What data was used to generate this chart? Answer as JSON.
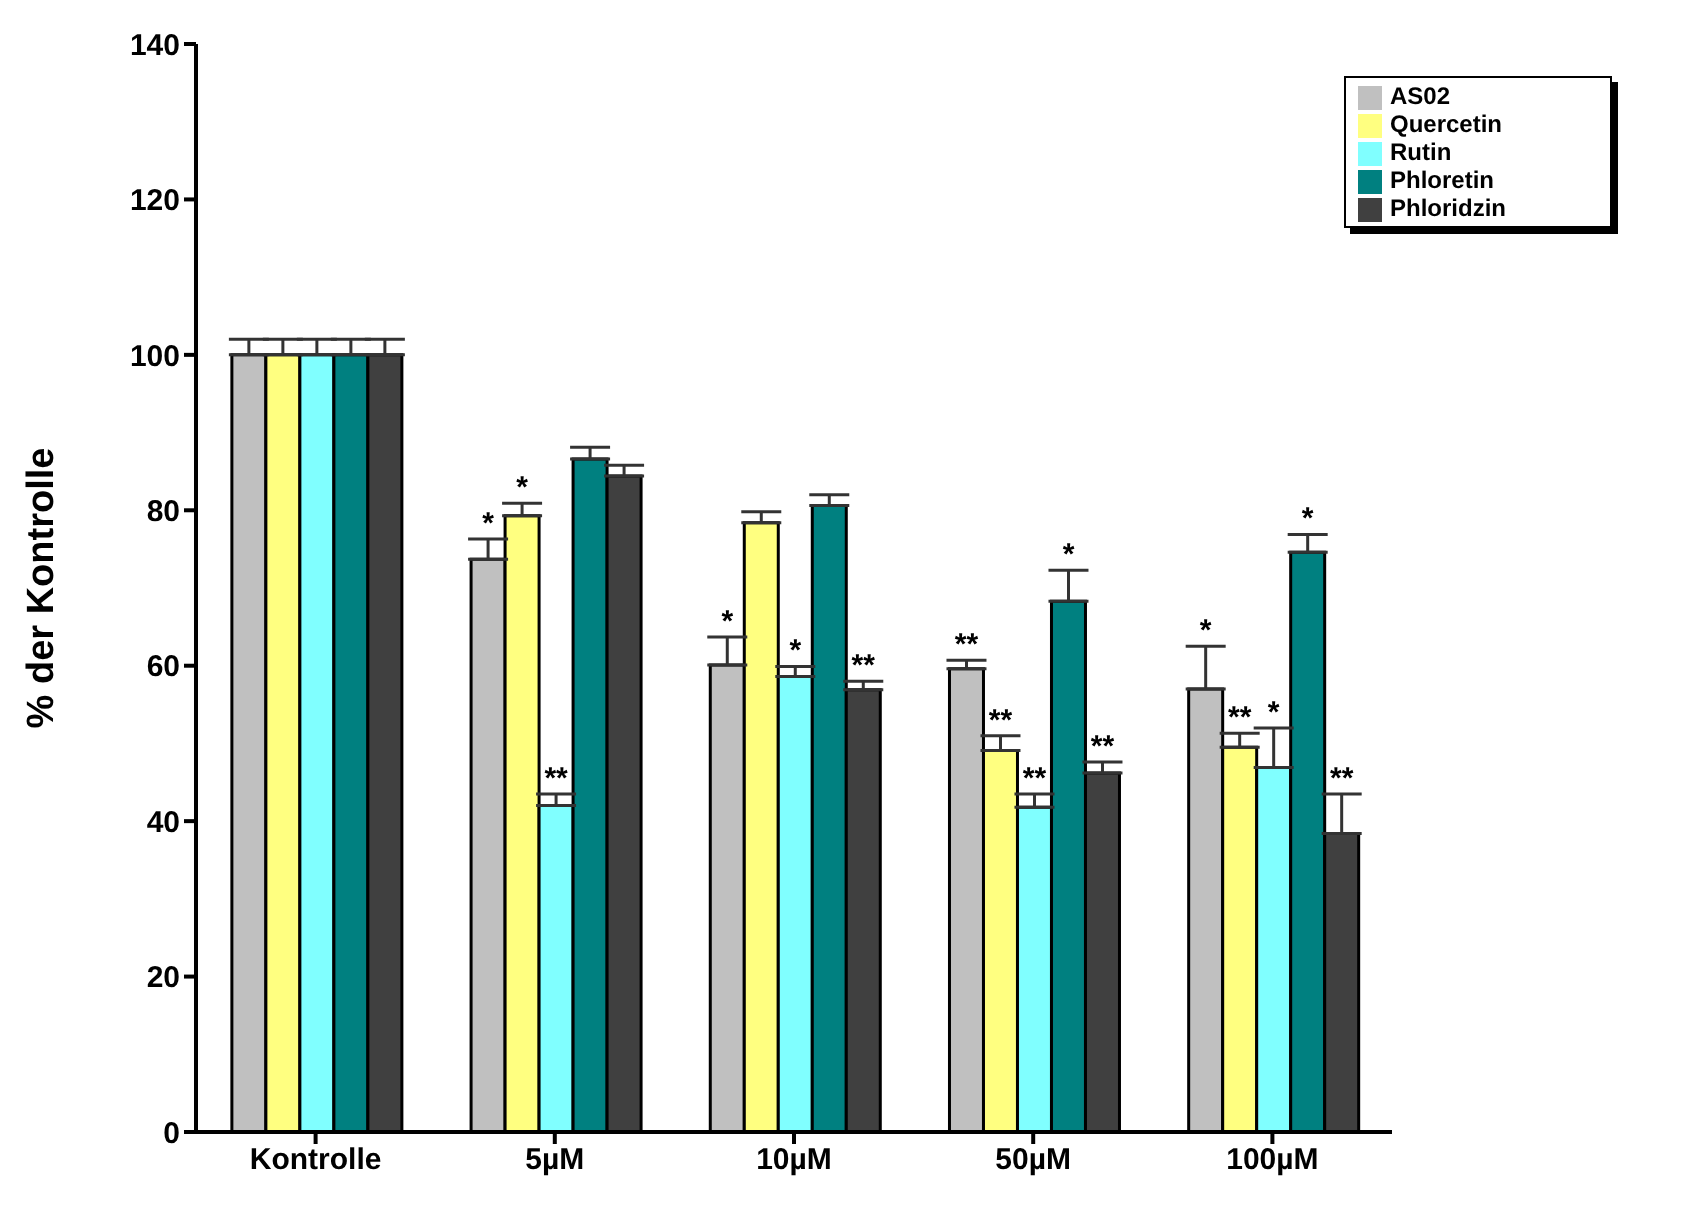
{
  "chart_data": {
    "type": "bar",
    "ylabel": "% der Kontrolle",
    "categories": [
      "Kontrolle",
      "5µM",
      "10µM",
      "50µM",
      "100µM"
    ],
    "series": [
      {
        "name": "AS02",
        "color": "#c0c0c0",
        "values": [
          100,
          73.7,
          60.1,
          59.6,
          57.0
        ],
        "errors": [
          [
            100,
            102
          ],
          [
            73.7,
            76.3
          ],
          [
            60.1,
            63.7
          ],
          [
            59.6,
            60.7
          ],
          [
            57.0,
            62.5
          ]
        ],
        "value_labels": [
          null,
          "*",
          "*",
          "**",
          "*"
        ]
      },
      {
        "name": "Quercetin",
        "color": "#ffff80",
        "values": [
          100,
          79.3,
          78.4,
          49.1,
          49.5
        ],
        "errors": [
          [
            100,
            102
          ],
          [
            79.3,
            80.9
          ],
          [
            78.4,
            79.8
          ],
          [
            49.1,
            51.0
          ],
          [
            49.5,
            51.3
          ]
        ],
        "value_labels": [
          null,
          "*",
          null,
          "**",
          "**"
        ]
      },
      {
        "name": "Rutin",
        "color": "#80ffff",
        "values": [
          100,
          42.0,
          58.6,
          41.8,
          46.9
        ],
        "errors": [
          [
            100,
            102
          ],
          [
            42.0,
            43.5
          ],
          [
            58.6,
            59.9
          ],
          [
            41.8,
            43.5
          ],
          [
            46.9,
            52.0
          ]
        ],
        "value_labels": [
          null,
          "**",
          "*",
          "**",
          "*"
        ]
      },
      {
        "name": "Phloretin",
        "color": "#008080",
        "values": [
          100,
          86.6,
          80.6,
          68.3,
          74.6
        ],
        "errors": [
          [
            100,
            102
          ],
          [
            86.6,
            88.1
          ],
          [
            80.6,
            82.0
          ],
          [
            68.3,
            72.3
          ],
          [
            74.6,
            76.9
          ]
        ],
        "value_labels": [
          null,
          null,
          null,
          "*",
          "*"
        ]
      },
      {
        "name": "Phloridzin",
        "color": "#404040",
        "values": [
          100,
          84.4,
          56.9,
          46.2,
          38.4
        ],
        "errors": [
          [
            100,
            102
          ],
          [
            84.4,
            85.8
          ],
          [
            56.9,
            58.0
          ],
          [
            46.2,
            47.6
          ],
          [
            38.4,
            43.5
          ]
        ],
        "value_labels": [
          null,
          null,
          "**",
          "**",
          "**"
        ]
      }
    ],
    "ylim": [
      0,
      140
    ],
    "yticks": [
      0,
      20,
      40,
      60,
      80,
      100,
      120,
      140
    ],
    "grid": false,
    "legend": "top right"
  }
}
